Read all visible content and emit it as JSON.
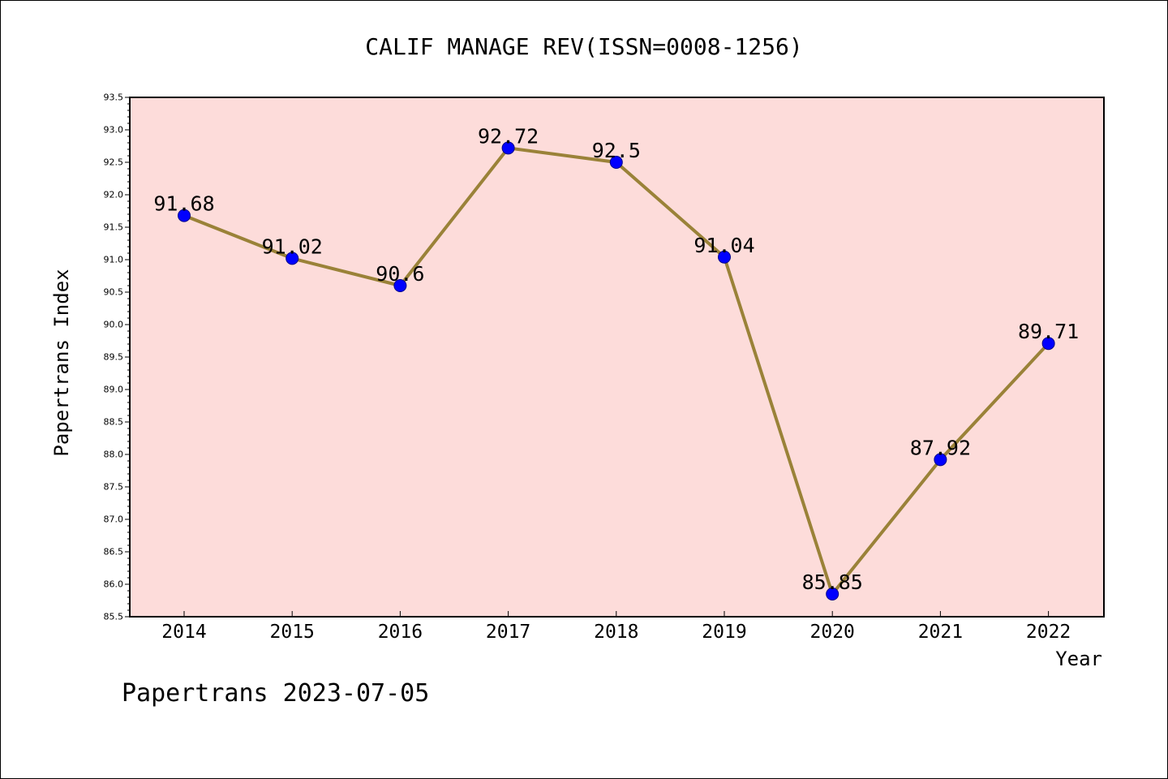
{
  "chart_data": {
    "type": "line",
    "title": "CALIF MANAGE REV(ISSN=0008-1256)",
    "xlabel": "Year",
    "ylabel": "Papertrans Index",
    "footer": "Papertrans 2023-07-05",
    "categories": [
      "2014",
      "2015",
      "2016",
      "2017",
      "2018",
      "2019",
      "2020",
      "2021",
      "2022"
    ],
    "series": [
      {
        "values": [
          91.68,
          91.02,
          90.6,
          92.72,
          92.5,
          91.04,
          85.85,
          87.92,
          89.71
        ],
        "labels": [
          "91.68",
          "91.02",
          "90.6",
          "92.72",
          "92.5",
          "91.04",
          "85.85",
          "87.92",
          "89.71"
        ]
      }
    ],
    "ylim": [
      85.5,
      93.5
    ],
    "yticks": [
      "85.5",
      "86.0",
      "86.5",
      "87.0",
      "87.5",
      "88.0",
      "88.5",
      "89.0",
      "89.5",
      "90.0",
      "90.5",
      "91.0",
      "91.5",
      "92.0",
      "92.5",
      "93.0",
      "93.5"
    ],
    "grid": false,
    "legend": "none",
    "colors": {
      "plot_background": "#fddcda",
      "line": "#9a8238",
      "marker": "#0000ff",
      "marker_edge": "#00008b",
      "axes": "#000000"
    }
  }
}
